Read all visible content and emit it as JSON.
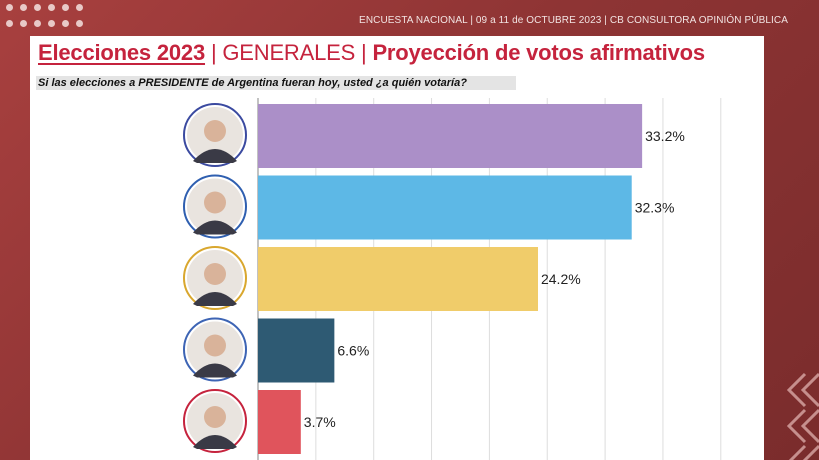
{
  "header": {
    "source": "ENCUESTA NACIONAL | 09 a 11 de OCTUBRE 2023 | CB CONSULTORA OPINIÓN PÚBLICA"
  },
  "title": {
    "part1": "Elecciones 2023",
    "separator": "|",
    "part2": "GENERALES",
    "part3": "Proyección de votos afirmativos"
  },
  "question": "Si las elecciones a PRESIDENTE de Argentina fueran hoy, usted ¿a quién votaría?",
  "colors": {
    "accent": "#c5233d",
    "background": "#8e3434"
  },
  "chart_data": {
    "type": "bar",
    "orientation": "horizontal",
    "xlim": [
      0,
      40
    ],
    "grid": true,
    "series": [
      {
        "value": 33.2,
        "label": "33.2%",
        "color": "#ab8fc8",
        "ring": "#3b4aa0",
        "avatar": "candidate-1-avatar"
      },
      {
        "value": 32.3,
        "label": "32.3%",
        "color": "#5db8e6",
        "ring": "#2f5fb0",
        "avatar": "candidate-2-avatar"
      },
      {
        "value": 24.2,
        "label": "24.2%",
        "color": "#f0cc6a",
        "ring": "#d9a72e",
        "avatar": "candidate-3-avatar"
      },
      {
        "value": 6.6,
        "label": "6.6%",
        "color": "#2e5a73",
        "ring": "#3d64b4",
        "avatar": "candidate-4-avatar"
      },
      {
        "value": 3.7,
        "label": "3.7%",
        "color": "#e0545c",
        "ring": "#c5233d",
        "avatar": "candidate-5-avatar"
      }
    ]
  }
}
